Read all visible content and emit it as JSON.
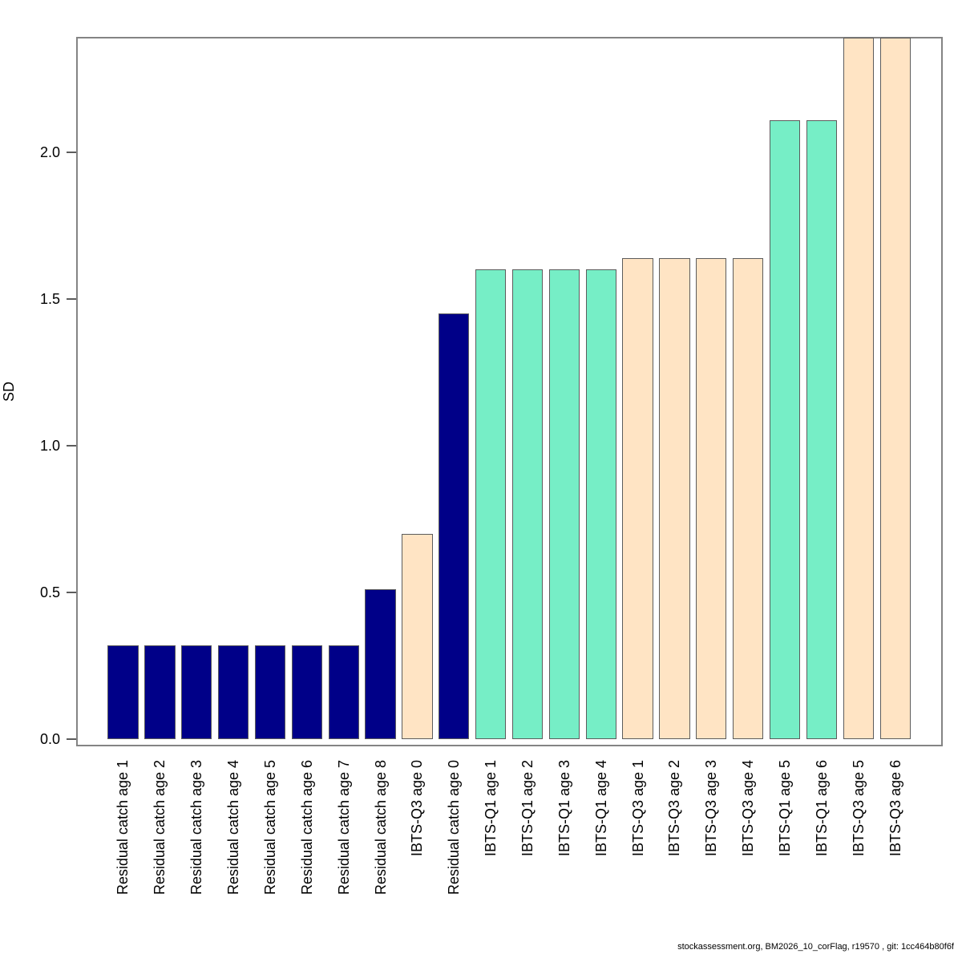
{
  "footer": {
    "text": "stockassessment.org, BM2026_10_corFlag, r19570 , git: 1cc464b80f6f"
  },
  "chart_data": {
    "type": "bar",
    "title": "",
    "xlabel": "",
    "ylabel": "SD",
    "ylim": [
      0,
      2.39
    ],
    "yticks": [
      "0.0",
      "0.5",
      "1.0",
      "1.5",
      "2.0"
    ],
    "grid": false,
    "legend": false,
    "categories": [
      "Residual catch age 1",
      "Residual catch age 2",
      "Residual catch age 3",
      "Residual catch age 4",
      "Residual catch age 5",
      "Residual catch age 6",
      "Residual catch age 7",
      "Residual catch age 8",
      "IBTS-Q3 age 0",
      "Residual catch age 0",
      "IBTS-Q1 age 1",
      "IBTS-Q1 age 2",
      "IBTS-Q1 age 3",
      "IBTS-Q1 age 4",
      "IBTS-Q3 age 1",
      "IBTS-Q3 age 2",
      "IBTS-Q3 age 3",
      "IBTS-Q3 age 4",
      "IBTS-Q1 age 5",
      "IBTS-Q1 age 6",
      "IBTS-Q3 age 5",
      "IBTS-Q3 age 6"
    ],
    "values": [
      0.32,
      0.32,
      0.32,
      0.32,
      0.32,
      0.32,
      0.32,
      0.51,
      0.7,
      1.45,
      1.6,
      1.6,
      1.6,
      1.6,
      1.64,
      1.64,
      1.64,
      1.64,
      2.11,
      2.11,
      2.39,
      2.39
    ],
    "bar_colors": [
      "#000088",
      "#000088",
      "#000088",
      "#000088",
      "#000088",
      "#000088",
      "#000088",
      "#000088",
      "#FFE4C4",
      "#000088",
      "#76EEC6",
      "#76EEC6",
      "#76EEC6",
      "#76EEC6",
      "#FFE4C4",
      "#FFE4C4",
      "#FFE4C4",
      "#FFE4C4",
      "#76EEC6",
      "#76EEC6",
      "#FFE4C4",
      "#FFE4C4"
    ],
    "color_groups": [
      {
        "name": "Residual catch",
        "color": "#000088"
      },
      {
        "name": "IBTS-Q1",
        "color": "#76EEC6"
      },
      {
        "name": "IBTS-Q3",
        "color": "#FFE4C4"
      }
    ]
  }
}
